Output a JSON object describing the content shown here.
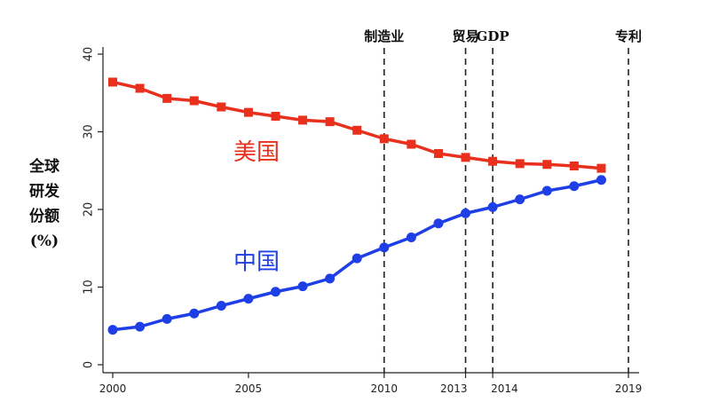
{
  "chart_data": {
    "type": "line",
    "title": "",
    "ylabel_lines": [
      "全球",
      "研发",
      "份额",
      "(%)"
    ],
    "xlabel": "",
    "xlim": [
      2000,
      2019
    ],
    "ylim": [
      0,
      40
    ],
    "x_ticks": [
      {
        "value": 2000,
        "label": "2000"
      },
      {
        "value": 2005,
        "label": "2005"
      },
      {
        "value": 2010,
        "label": "2010"
      },
      {
        "value": 2013,
        "label": "2013"
      },
      {
        "value": 2014,
        "label": "2014"
      },
      {
        "value": 2019,
        "label": "2019"
      }
    ],
    "y_ticks": [
      {
        "value": 0,
        "label": "0"
      },
      {
        "value": 10,
        "label": "10"
      },
      {
        "value": 20,
        "label": "20"
      },
      {
        "value": 30,
        "label": "30"
      },
      {
        "value": 40,
        "label": "40"
      }
    ],
    "x": [
      2000,
      2001,
      2002,
      2003,
      2004,
      2005,
      2006,
      2007,
      2008,
      2009,
      2010,
      2011,
      2012,
      2013,
      2014,
      2015,
      2016,
      2017,
      2018
    ],
    "series": [
      {
        "name": "美国",
        "color": "#e8301c",
        "marker": "square",
        "values": [
          36.4,
          35.6,
          34.3,
          34.0,
          33.2,
          32.5,
          32.0,
          31.5,
          31.3,
          30.2,
          29.1,
          28.4,
          27.2,
          26.7,
          26.2,
          25.9,
          25.8,
          25.6,
          25.3
        ]
      },
      {
        "name": "中国",
        "color": "#1f3fe6",
        "marker": "circle",
        "values": [
          4.5,
          4.9,
          5.9,
          6.6,
          7.6,
          8.5,
          9.4,
          10.1,
          11.1,
          13.7,
          15.1,
          16.4,
          18.2,
          19.5,
          20.3,
          21.3,
          22.4,
          23.0,
          23.8
        ]
      }
    ],
    "annotations": [
      {
        "x": 2010,
        "label": "制造业"
      },
      {
        "x": 2013,
        "label": "贸易"
      },
      {
        "x": 2014,
        "label": "GDP"
      },
      {
        "x": 2019,
        "label": "专利"
      }
    ],
    "series_label_positions": [
      {
        "series": "美国",
        "x": 2005.3,
        "y": 27.3
      },
      {
        "series": "中国",
        "x": 2005.3,
        "y": 13.2
      }
    ],
    "grid": false,
    "legend": "inline"
  }
}
